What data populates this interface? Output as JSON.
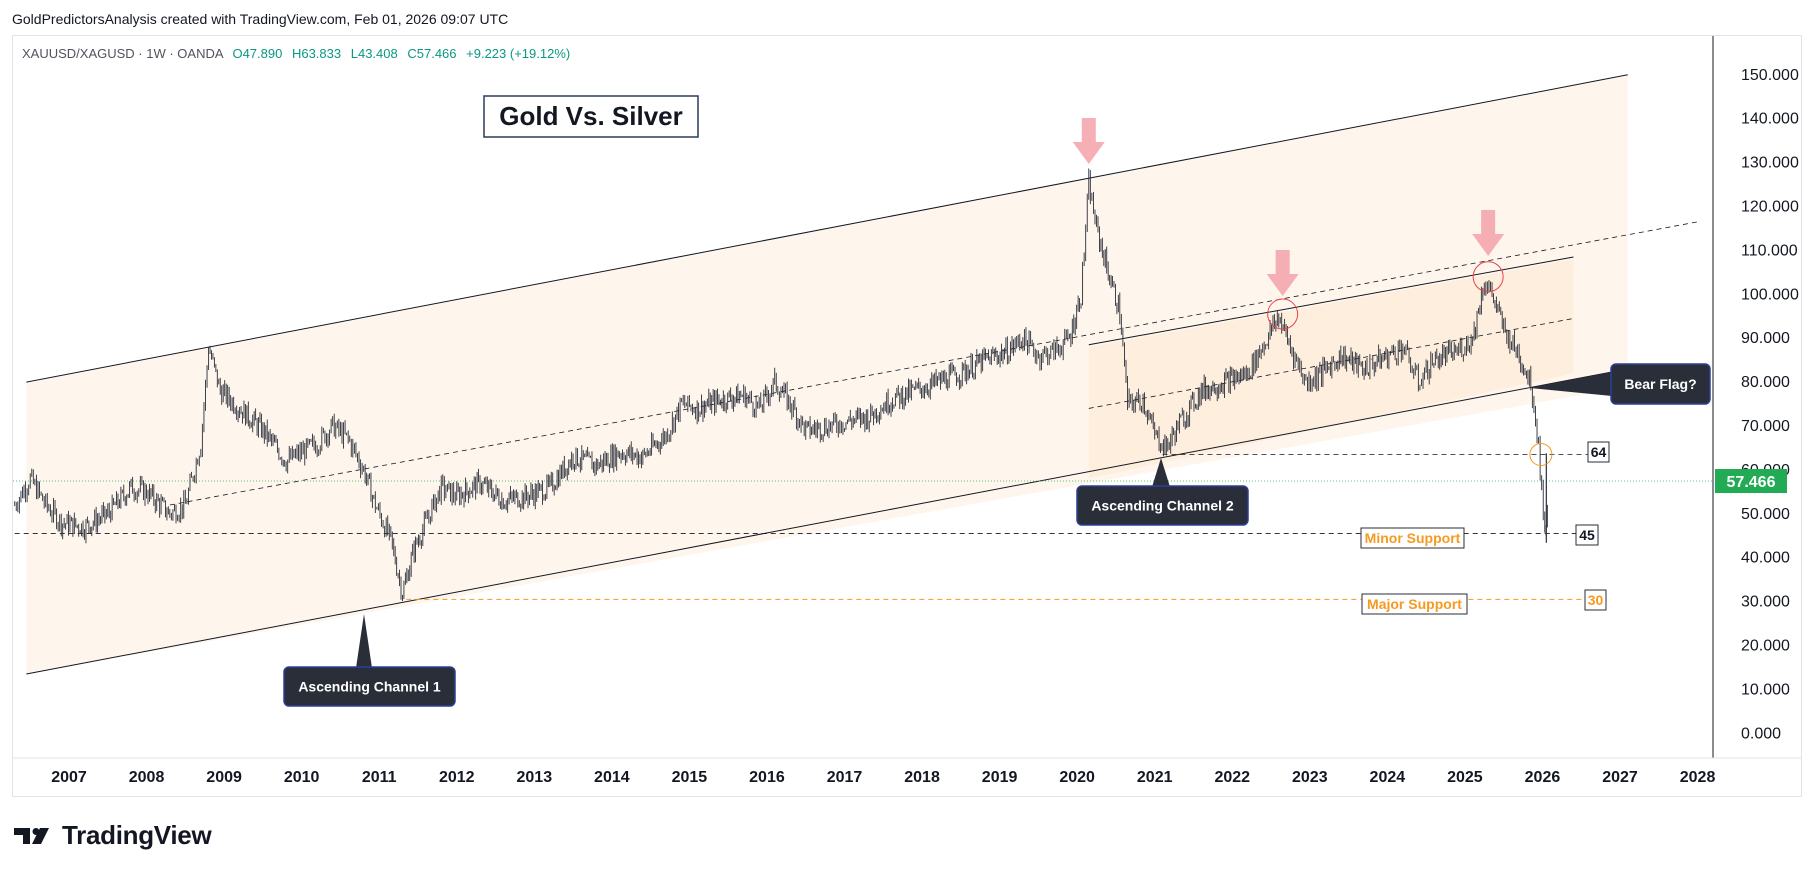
{
  "header": {
    "credit": "GoldPredictorsAnalysis created with TradingView.com, Feb 01, 2026 09:07 UTC"
  },
  "symbol": {
    "name": "XAUUSD/XAGUSD · 1W · OANDA",
    "open_label": "O",
    "open": "47.890",
    "high_label": "H",
    "high": "63.833",
    "low_label": "L",
    "low": "43.408",
    "close_label": "C",
    "close": "57.466",
    "change": "+9.223 (+19.12%)"
  },
  "footer": {
    "brand": "TradingView"
  },
  "colors": {
    "candle": "#2a2e39",
    "channel_fill": "#fdf3e6",
    "arrow": "#f4a6ad",
    "circle_red": "#e8434e",
    "circle_orange": "#f59a23",
    "support_orange": "#f59a23",
    "price_tag": "#22ab54",
    "callout": "#2a2e39",
    "callout_border": "#2c3e9a"
  },
  "chart_data": {
    "type": "candlestick",
    "title": "Gold Vs. Silver",
    "ylim": [
      0,
      155
    ],
    "xlim": [
      2006.3,
      2028
    ],
    "y_ticks": [
      "150.000",
      "140.000",
      "130.000",
      "120.000",
      "110.000",
      "100.000",
      "90.000",
      "80.000",
      "70.000",
      "60.000",
      "50.000",
      "40.000",
      "30.000",
      "20.000",
      "10.000",
      "0.000"
    ],
    "x_ticks": [
      "2007",
      "2008",
      "2009",
      "2010",
      "2011",
      "2012",
      "2013",
      "2014",
      "2015",
      "2016",
      "2017",
      "2018",
      "2019",
      "2020",
      "2021",
      "2022",
      "2023",
      "2024",
      "2025",
      "2026",
      "2027",
      "2028"
    ],
    "last_price": "57.466",
    "series": [
      {
        "points": [
          [
            2006.3,
            52
          ],
          [
            2006.5,
            58
          ],
          [
            2006.7,
            52
          ],
          [
            2006.9,
            48
          ],
          [
            2007.2,
            47
          ],
          [
            2007.5,
            50
          ],
          [
            2007.8,
            56
          ],
          [
            2008.0,
            55
          ],
          [
            2008.3,
            50
          ],
          [
            2008.5,
            52
          ],
          [
            2008.7,
            66
          ],
          [
            2008.8,
            88
          ],
          [
            2008.95,
            78
          ],
          [
            2009.2,
            74
          ],
          [
            2009.5,
            69
          ],
          [
            2009.8,
            62
          ],
          [
            2010.0,
            64
          ],
          [
            2010.2,
            66
          ],
          [
            2010.4,
            70
          ],
          [
            2010.6,
            67
          ],
          [
            2010.8,
            60
          ],
          [
            2010.95,
            52
          ],
          [
            2011.15,
            44
          ],
          [
            2011.3,
            32
          ],
          [
            2011.45,
            42
          ],
          [
            2011.6,
            48
          ],
          [
            2011.8,
            56
          ],
          [
            2012.0,
            54
          ],
          [
            2012.3,
            57
          ],
          [
            2012.6,
            53
          ],
          [
            2012.9,
            54
          ],
          [
            2013.2,
            56
          ],
          [
            2013.5,
            63
          ],
          [
            2013.8,
            61
          ],
          [
            2014.1,
            64
          ],
          [
            2014.4,
            63
          ],
          [
            2014.7,
            68
          ],
          [
            2014.9,
            75
          ],
          [
            2015.1,
            74
          ],
          [
            2015.4,
            76
          ],
          [
            2015.7,
            77
          ],
          [
            2015.9,
            74
          ],
          [
            2016.1,
            80
          ],
          [
            2016.3,
            75
          ],
          [
            2016.5,
            69
          ],
          [
            2016.8,
            70
          ],
          [
            2017.0,
            71
          ],
          [
            2017.3,
            72
          ],
          [
            2017.6,
            76
          ],
          [
            2017.9,
            78
          ],
          [
            2018.2,
            80
          ],
          [
            2018.5,
            82
          ],
          [
            2018.8,
            85
          ],
          [
            2019.1,
            87
          ],
          [
            2019.3,
            90
          ],
          [
            2019.5,
            86
          ],
          [
            2019.7,
            87
          ],
          [
            2019.9,
            90
          ],
          [
            2020.05,
            100
          ],
          [
            2020.15,
            125
          ],
          [
            2020.25,
            115
          ],
          [
            2020.4,
            105
          ],
          [
            2020.55,
            96
          ],
          [
            2020.65,
            75
          ],
          [
            2020.85,
            76
          ],
          [
            2021.0,
            68
          ],
          [
            2021.15,
            65
          ],
          [
            2021.3,
            70
          ],
          [
            2021.6,
            78
          ],
          [
            2021.9,
            80
          ],
          [
            2022.2,
            82
          ],
          [
            2022.45,
            90
          ],
          [
            2022.6,
            95
          ],
          [
            2022.75,
            88
          ],
          [
            2022.95,
            80
          ],
          [
            2023.15,
            82
          ],
          [
            2023.4,
            86
          ],
          [
            2023.7,
            83
          ],
          [
            2024.0,
            86
          ],
          [
            2024.2,
            88
          ],
          [
            2024.4,
            80
          ],
          [
            2024.6,
            85
          ],
          [
            2024.9,
            87
          ],
          [
            2025.1,
            90
          ],
          [
            2025.25,
            103
          ],
          [
            2025.35,
            100
          ],
          [
            2025.5,
            92
          ],
          [
            2025.7,
            86
          ],
          [
            2025.85,
            80
          ],
          [
            2025.95,
            66
          ],
          [
            2026.03,
            45
          ],
          [
            2026.08,
            57
          ]
        ]
      }
    ],
    "annotations": {
      "bear_flag": "Bear Flag?",
      "channel_1": "Ascending Channel 1",
      "channel_2": "Ascending Channel 2",
      "minor_support": "Minor Support",
      "major_support": "Major Support",
      "level_64": "64",
      "level_45": "45",
      "level_30": "30"
    }
  }
}
